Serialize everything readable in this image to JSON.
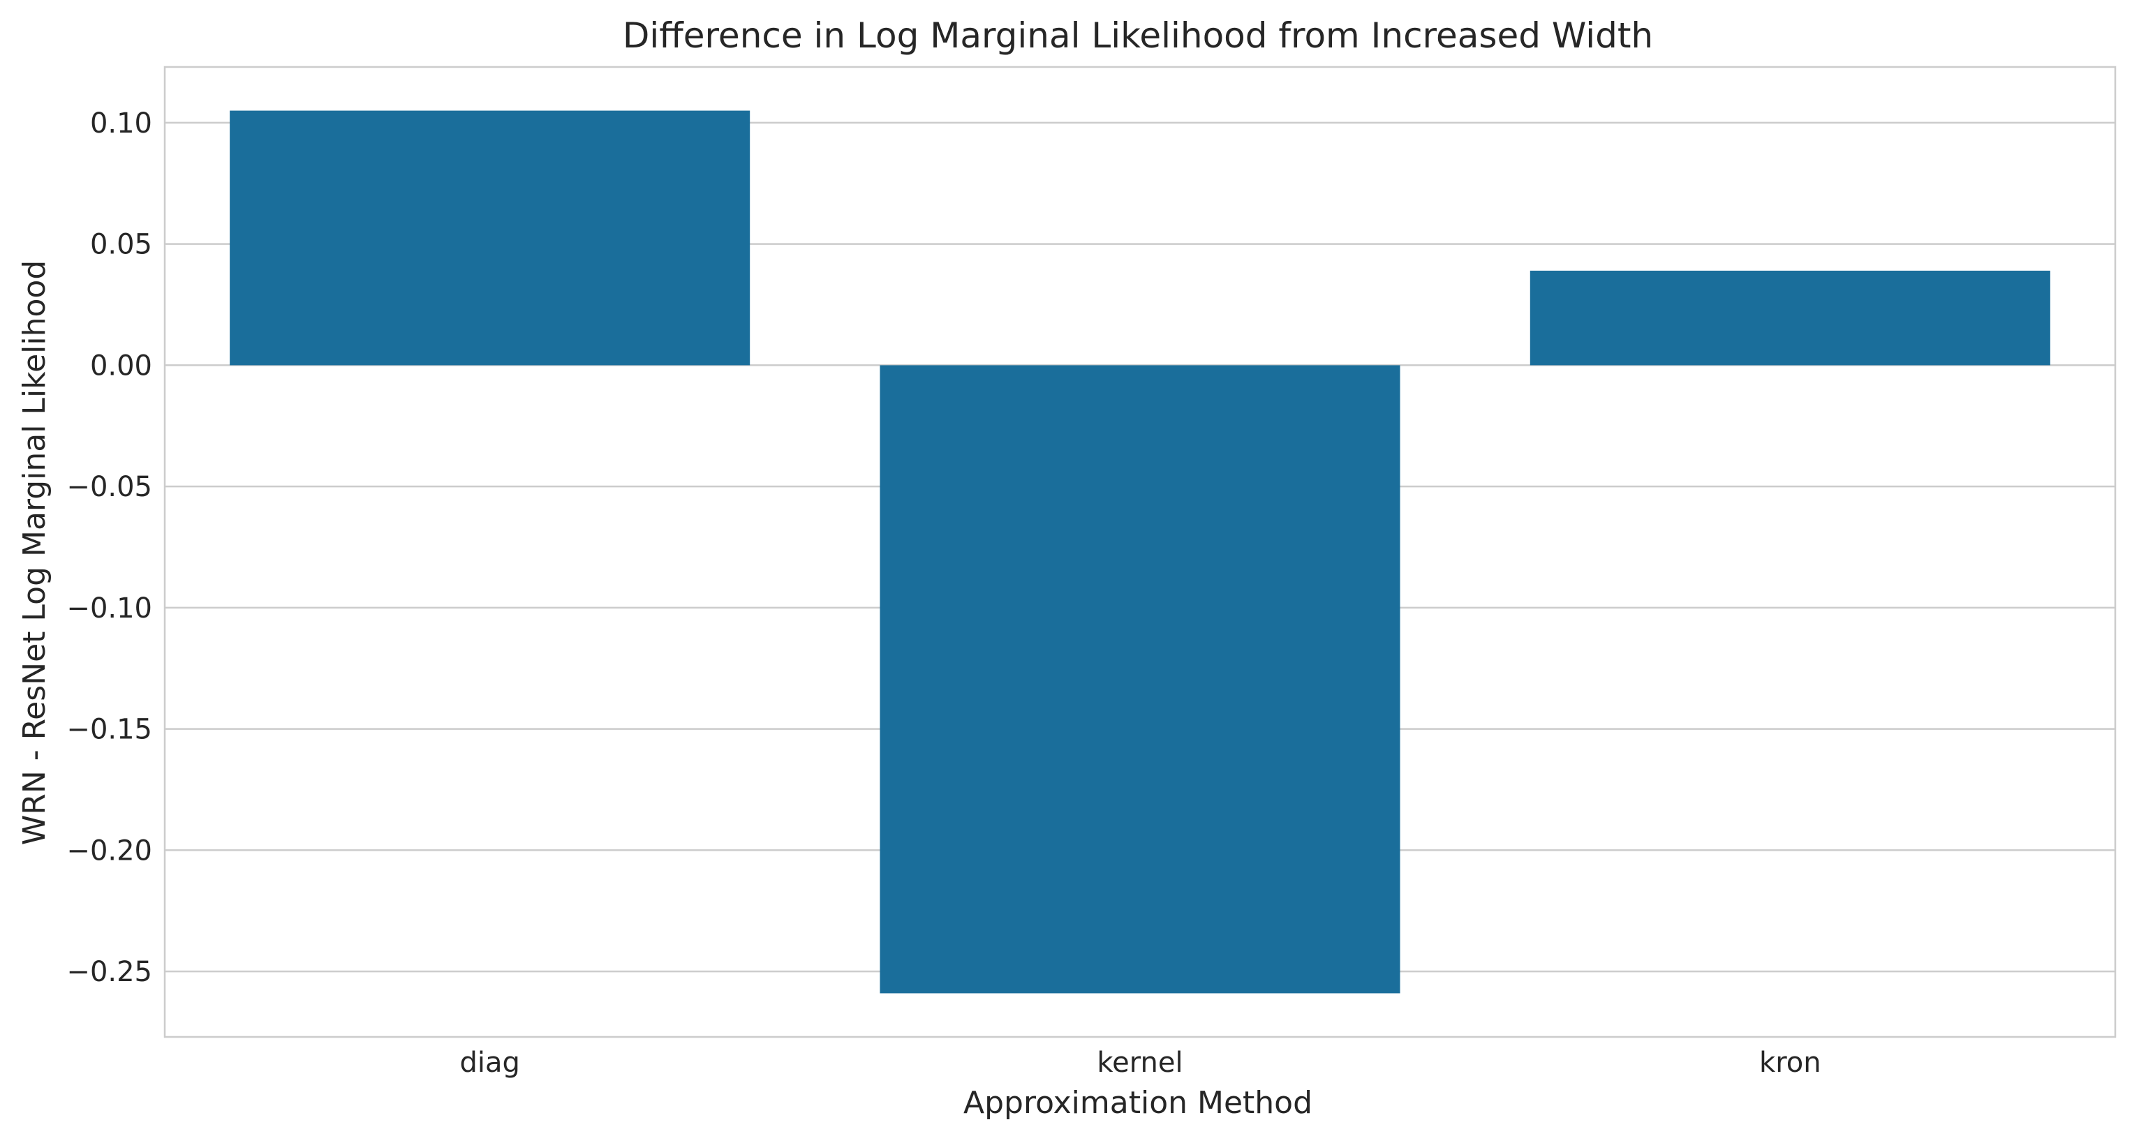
{
  "chart_data": {
    "type": "bar",
    "title": "Difference in Log Marginal Likelihood from Increased Width",
    "xlabel": "Approximation Method",
    "ylabel": "WRN - ResNet Log Marginal Likelihood",
    "categories": [
      "diag",
      "kernel",
      "kron"
    ],
    "values": [
      0.105,
      -0.259,
      0.039
    ],
    "ylim": [
      -0.277,
      0.123
    ],
    "yticks": [
      0.1,
      0.05,
      0.0,
      -0.05,
      -0.1,
      -0.15,
      -0.2,
      -0.25
    ],
    "ytick_labels": [
      "0.10",
      "0.05",
      "0.00",
      "−0.05",
      "−0.10",
      "−0.15",
      "−0.20",
      "−0.25"
    ],
    "grid": true,
    "legend": "none",
    "bar_color": "#1a6e9b"
  }
}
